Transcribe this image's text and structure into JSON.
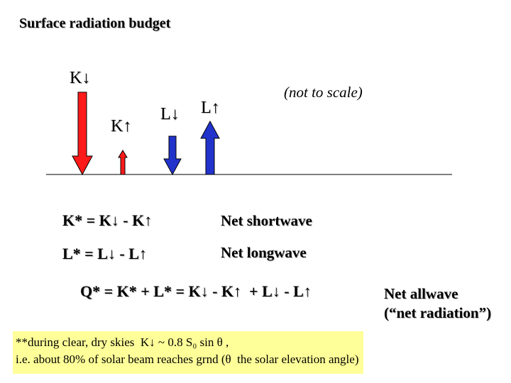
{
  "title": "Surface radiation budget",
  "diagram": {
    "labels": {
      "k_down": "K↓",
      "k_up": "K↑",
      "l_down": "L↓",
      "l_up": "L↑"
    },
    "note": "(not to scale)",
    "colors": {
      "shortwave_arrow": "#ff1a1a",
      "longwave_arrow": "#2233cc"
    }
  },
  "equations": {
    "k_star": "K* = K↓ - K↑",
    "k_star_desc": "Net shortwave",
    "l_star": "L* = L↓ - L↑",
    "l_star_desc": "Net longwave",
    "q_star": "Q* = K* + L* = K↓ - K↑  + L↓ - L↑",
    "q_star_desc_line1": "Net allwave",
    "q_star_desc_line2": "(“net radiation”)"
  },
  "footnote": {
    "line1": "**during clear, dry skies  K↓ ~ 0.8 S₀ sin θ ,",
    "line2": "i.e. about 80% of solar beam reaches grnd (θ  the solar elevation angle)"
  },
  "highlight_color": "#ffff99"
}
